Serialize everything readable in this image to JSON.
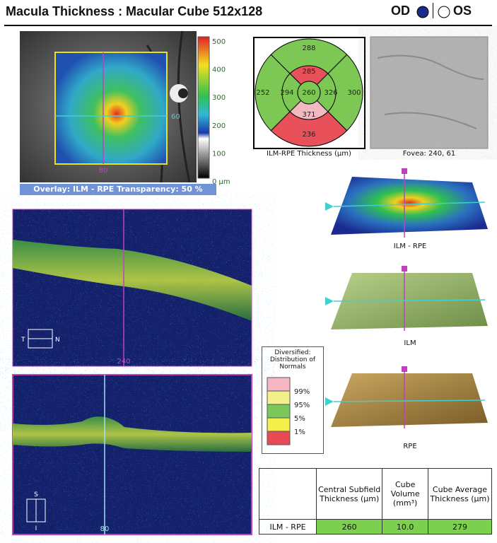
{
  "header": {
    "title": "Macula Thickness : Macular Cube 512x128",
    "od": "OD",
    "os": "OS"
  },
  "thickness_map": {
    "colorbar_labels": [
      "500",
      "400",
      "300",
      "200",
      "100",
      "0 µm"
    ],
    "vertical_marker": "80",
    "horizontal_marker": "60",
    "caption": "Overlay: ILM - RPE  Transparency: 50 %"
  },
  "etdrs": {
    "outer_superior": "288",
    "outer_temporal": "252",
    "inner_temporal": "294",
    "center": "260",
    "inner_nasal": "326",
    "outer_nasal": "300",
    "inner_superior": "285",
    "inner_inferior": "371",
    "outer_inferior": "236",
    "caption": "ILM-RPE Thickness (µm)"
  },
  "fundus": {
    "caption": "Fovea: 240, 61"
  },
  "surfaces": {
    "ilm_rpe": "ILM - RPE",
    "ilm": "ILM",
    "rpe": "RPE"
  },
  "bscan_horizontal": {
    "position": "240",
    "left": "T",
    "right": "N"
  },
  "bscan_vertical": {
    "position": "80",
    "top": "S",
    "bottom": "I"
  },
  "legend": {
    "title": "Diversified: Distribution of Normals",
    "labels": [
      "99%",
      "95%",
      "5%",
      "1%"
    ]
  },
  "table": {
    "headers": [
      "Central Subfield Thickness (µm)",
      "Cube Volume (mm³)",
      "Cube Average Thickness (µm)"
    ],
    "row_label": "ILM - RPE",
    "values": [
      "260",
      "10.0",
      "279"
    ]
  }
}
